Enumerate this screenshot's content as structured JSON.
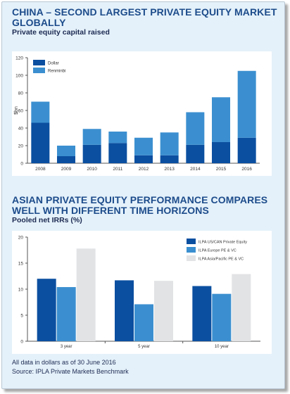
{
  "chart1": {
    "title_line1": "CHINA – SECOND LARGEST PRIVATE EQUITY MARKET",
    "title_line2": "GLOBALLY",
    "subtitle": "Private equity capital raised"
  },
  "chart2": {
    "title_line1": "ASIAN PRIVATE EQUITY PERFORMANCE COMPARES",
    "title_line2": "WELL WITH DIFFERENT TIME HORIZONS",
    "subtitle": "Pooled net IRRs (%)"
  },
  "footer": {
    "note": "All data in dollars as of 30 June 2016",
    "source": "Source: IPLA Private Markets Benchmark"
  },
  "colors": {
    "dark_blue": "#0b4fa0",
    "mid_blue": "#3b8fd0",
    "light_grey": "#e2e3e5",
    "title": "#1d4c8b",
    "panel_bg": "#e4f1fa"
  },
  "chart_data": [
    {
      "type": "bar",
      "stacked": true,
      "categories": [
        "2008",
        "2009",
        "2010",
        "2011",
        "2012",
        "2013",
        "2014",
        "2015",
        "2016"
      ],
      "series": [
        {
          "name": "Dollar",
          "values": [
            46,
            8,
            21,
            23,
            9,
            9,
            21,
            24,
            29
          ],
          "color": "#0b4fa0"
        },
        {
          "name": "Renminbi",
          "values": [
            24,
            12,
            18,
            13,
            20,
            26,
            37,
            51,
            76
          ],
          "color": "#3b8fd0"
        }
      ],
      "ylabel": "$bn",
      "ylim": [
        0,
        120
      ],
      "yticks": [
        0,
        20,
        40,
        60,
        80,
        100,
        120
      ],
      "legend_position": "top-left",
      "grid": false
    },
    {
      "type": "bar",
      "categories": [
        "3 year",
        "5 year",
        "10 year"
      ],
      "series": [
        {
          "name": "ILPA US/CAN Private Equity",
          "values": [
            12,
            11.7,
            10.6
          ],
          "color": "#0b4fa0"
        },
        {
          "name": "ILPA Europe PE & VC",
          "values": [
            10.4,
            7.1,
            9.1
          ],
          "color": "#3b8fd0"
        },
        {
          "name": "ILPA Asia/Pacific PE & VC",
          "values": [
            17.8,
            11.6,
            12.9
          ],
          "color": "#e2e3e5"
        }
      ],
      "ylim": [
        0,
        20
      ],
      "yticks": [
        0,
        5,
        10,
        15,
        20
      ],
      "legend_position": "top-right",
      "grid": false
    }
  ]
}
